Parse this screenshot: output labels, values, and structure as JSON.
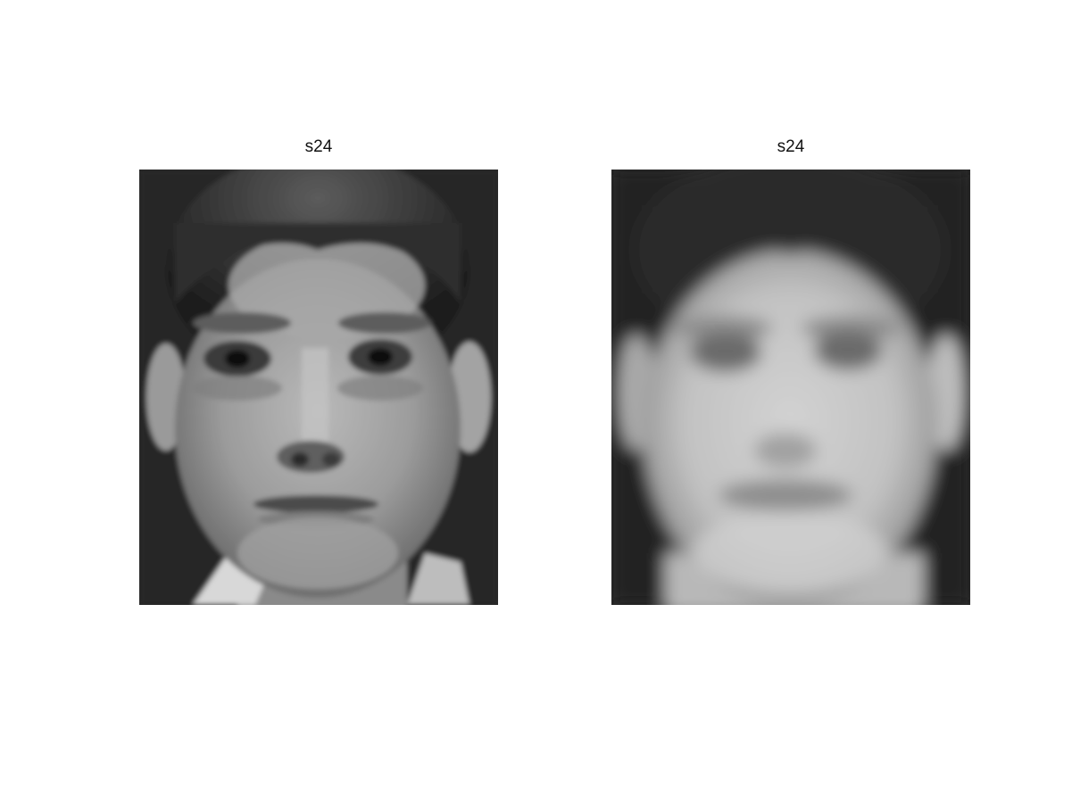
{
  "figure": {
    "panels": [
      {
        "title": "s24",
        "variant": "original"
      },
      {
        "title": "s24",
        "variant": "reconstruction"
      }
    ]
  }
}
